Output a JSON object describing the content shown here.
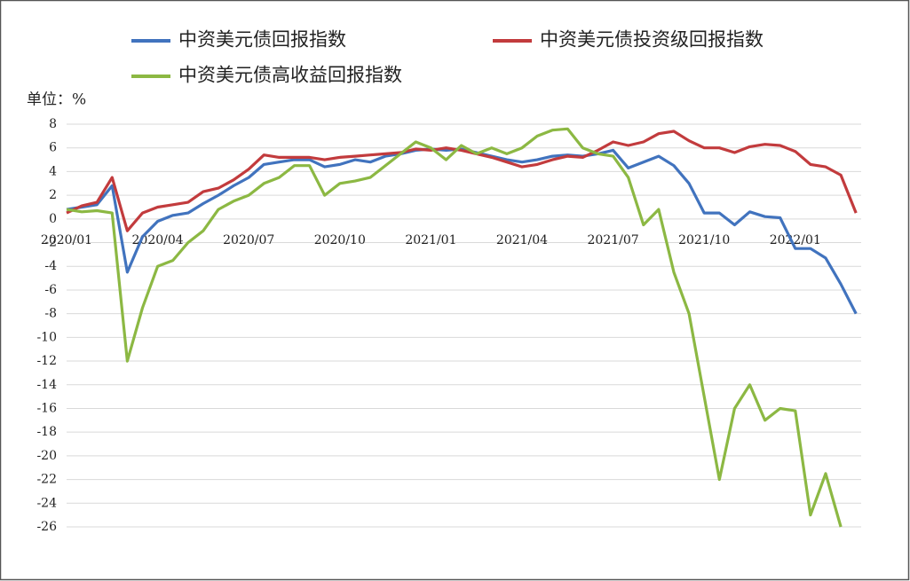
{
  "chart_data": {
    "type": "line",
    "y_unit": "单位：%",
    "categories": [
      "2020/01",
      null,
      null,
      null,
      null,
      null,
      "2020/04",
      null,
      null,
      null,
      null,
      null,
      "2020/07",
      null,
      null,
      null,
      null,
      null,
      "2020/10",
      null,
      null,
      null,
      null,
      null,
      "2021/01",
      null,
      null,
      null,
      null,
      null,
      "2021/04",
      null,
      null,
      null,
      null,
      null,
      "2021/07",
      null,
      null,
      null,
      null,
      null,
      "2021/10",
      null,
      null,
      null,
      null,
      null,
      "2022/01",
      null,
      null,
      null,
      null
    ],
    "series": [
      {
        "name": "中资美元债回报指数",
        "color": "#4173be",
        "values": [
          0.8,
          1.0,
          1.2,
          2.8,
          -4.5,
          -1.5,
          -0.2,
          0.3,
          0.5,
          1.3,
          2.0,
          2.8,
          3.5,
          4.6,
          4.8,
          5.0,
          5.0,
          4.4,
          4.6,
          5.0,
          4.8,
          5.3,
          5.5,
          5.8,
          5.9,
          5.8,
          5.9,
          5.6,
          5.3,
          5.0,
          4.8,
          5.0,
          5.3,
          5.4,
          5.3,
          5.5,
          5.8,
          4.3,
          4.8,
          5.3,
          4.5,
          3.0,
          0.5,
          0.5,
          -0.5,
          0.6,
          0.2,
          0.1,
          -2.5,
          -2.5,
          -3.3,
          -5.5,
          -8
        ]
      },
      {
        "name": "中资美元债投资级回报指数",
        "color": "#c23b3d",
        "values": [
          0.5,
          1.1,
          1.4,
          3.5,
          -1,
          0.5,
          1.0,
          1.2,
          1.4,
          2.3,
          2.6,
          3.3,
          4.2,
          5.4,
          5.2,
          5.2,
          5.2,
          5.0,
          5.2,
          5.3,
          5.4,
          5.5,
          5.6,
          5.9,
          5.8,
          6.0,
          5.8,
          5.5,
          5.2,
          4.8,
          4.4,
          4.6,
          5.0,
          5.3,
          5.2,
          5.8,
          6.5,
          6.2,
          6.5,
          7.2,
          7.4,
          6.6,
          6.0,
          6.0,
          5.6,
          6.1,
          6.3,
          6.2,
          5.7,
          4.6,
          4.4,
          3.7,
          0.5
        ]
      },
      {
        "name": "中资美元债高收益回报指数",
        "color": "#8cb843",
        "values": [
          0.8,
          0.6,
          0.7,
          0.5,
          -12,
          -7.5,
          -4,
          -3.5,
          -2,
          -1,
          0.8,
          1.5,
          2.0,
          3.0,
          3.5,
          4.5,
          4.5,
          2.0,
          3.0,
          3.2,
          3.5,
          4.5,
          5.5,
          6.5,
          6.0,
          5.0,
          6.2,
          5.5,
          6.0,
          5.5,
          6.0,
          7.0,
          7.5,
          7.6,
          6.0,
          5.5,
          5.3,
          3.5,
          -0.5,
          0.8,
          -4.5,
          -8,
          -15,
          -22,
          -16,
          -14,
          -17,
          -16,
          -16.2,
          -25,
          -21.5,
          -26,
          null
        ]
      }
    ],
    "ylim": [
      -26,
      8
    ],
    "yticks": [
      -26,
      -24,
      -22,
      -20,
      -18,
      -16,
      -14,
      -12,
      -10,
      -8,
      -6,
      -4,
      -2,
      0,
      2,
      4,
      6,
      8
    ],
    "grid": true
  }
}
